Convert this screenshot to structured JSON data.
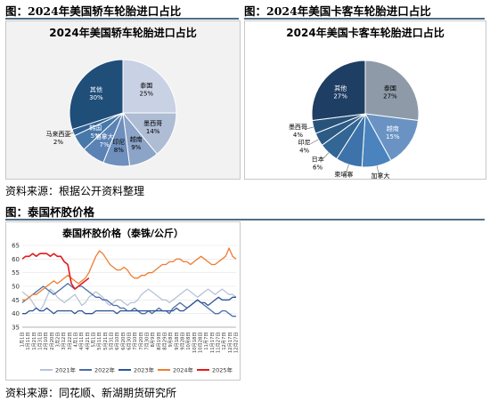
{
  "fig1": {
    "caption": "图：2024年美国轿车轮胎进口占比"
  },
  "fig2": {
    "caption": "图：2024年美国卡客车轮胎进口占比"
  },
  "source1": "资料来源：根据公开资料整理",
  "fig3": {
    "caption": "图：泰国杯胶价格"
  },
  "source2": "资料来源：同花顺、新湖期货研究所",
  "chart_data": [
    {
      "type": "pie",
      "title": "2024年美国轿车轮胎进口占比",
      "categories": [
        "泰国",
        "墨西哥",
        "越南",
        "印尼",
        "加拿大",
        "韩国",
        "马来西亚",
        "其他"
      ],
      "values": [
        25,
        14,
        9,
        8,
        7,
        5,
        2,
        30
      ],
      "value_labels": [
        "25%",
        "14%",
        "9%",
        "8%",
        "7%",
        "5%",
        "2%",
        "30%"
      ],
      "colors": [
        "#c9d2e4",
        "#aebcd4",
        "#8ba4c7",
        "#6f8fbd",
        "#5a82b4",
        "#4678aa",
        "#2f6195",
        "#1f4e79"
      ]
    },
    {
      "type": "pie",
      "title": "2024年美国卡客车轮胎进口占比",
      "categories": [
        "泰国",
        "越南",
        "加拿大",
        "柬埔寨",
        "日本",
        "印尼",
        "墨西哥",
        "其他"
      ],
      "values": [
        27,
        15,
        9,
        8,
        6,
        4,
        4,
        27
      ],
      "value_labels": [
        "27%",
        "15%",
        "9%",
        "8%",
        "6%",
        "4%",
        "4%",
        "27%"
      ],
      "colors": [
        "#8e9aa8",
        "#6a93c4",
        "#4a83bd",
        "#3d73aa",
        "#326694",
        "#2c5b86",
        "#27527a",
        "#1f3e63"
      ]
    },
    {
      "type": "line",
      "title": "泰国杯胶价格（泰铢/公斤）",
      "ylim": [
        35,
        65
      ],
      "yticks": [
        35,
        40,
        45,
        50,
        55,
        60,
        65
      ],
      "x_tick_labels": [
        "1月1日",
        "1月11日",
        "1月21日",
        "1月31日",
        "2月10日",
        "2月20日",
        "3月2日",
        "3月12日",
        "3月22日",
        "4月1日",
        "4月11日",
        "4月21日",
        "5月1日",
        "5月11日",
        "5月21日",
        "5月31日",
        "6月10日",
        "6月20日",
        "6月30日",
        "7月10日",
        "7月20日",
        "7月30日",
        "8月9日",
        "8月19日",
        "8月29日",
        "9月8日",
        "9月18日",
        "9月28日",
        "10月8日",
        "10月18日",
        "10月28日",
        "11月7日",
        "11月17日",
        "11月27日",
        "12月7日",
        "12月17日",
        "12月27日"
      ],
      "series": [
        {
          "name": "2021年",
          "color": "#b7c3d6",
          "values": [
            48,
            47,
            46,
            44,
            42,
            41,
            43,
            46,
            49,
            48,
            46,
            45,
            44,
            45,
            46,
            47,
            45,
            43,
            44,
            46,
            47,
            48,
            47,
            46,
            44,
            43,
            44,
            45,
            45,
            44,
            43,
            44,
            44,
            45,
            47,
            48,
            49,
            48,
            47,
            46,
            45,
            45,
            44,
            45,
            46,
            47,
            48,
            49,
            48,
            47,
            46,
            47,
            48,
            49,
            48,
            47,
            48,
            49,
            48,
            47,
            47,
            46
          ]
        },
        {
          "name": "2022年",
          "color": "#4a6ea8",
          "values": [
            44,
            45,
            46,
            47,
            48,
            49,
            50,
            49,
            48,
            47,
            48,
            49,
            50,
            51,
            50,
            49,
            50,
            50,
            49,
            48,
            47,
            46,
            46,
            45,
            45,
            44,
            43,
            43,
            42,
            42,
            41,
            41,
            42,
            41,
            40,
            40,
            41,
            40,
            41,
            42,
            41,
            41,
            40,
            42,
            43,
            44,
            43,
            42,
            43,
            44,
            45,
            44,
            43,
            42,
            41,
            40,
            40,
            41,
            41,
            40,
            39,
            39
          ]
        },
        {
          "name": "2023年",
          "color": "#2f5597",
          "values": [
            40,
            40,
            41,
            41,
            42,
            41,
            41,
            42,
            41,
            40,
            41,
            41,
            41,
            41,
            41,
            40,
            41,
            41,
            40,
            40,
            40,
            41,
            41,
            41,
            41,
            41,
            41,
            40,
            41,
            41,
            41,
            41,
            41,
            41,
            41,
            41,
            41,
            41,
            41,
            41,
            41,
            41,
            41,
            41,
            42,
            41,
            41,
            42,
            43,
            44,
            45,
            44,
            44,
            43,
            44,
            45,
            46,
            45,
            45,
            45,
            46,
            46
          ]
        },
        {
          "name": "2024年",
          "color": "#ed7d31",
          "values": [
            45,
            45,
            46,
            47,
            47,
            48,
            49,
            50,
            51,
            52,
            51,
            52,
            53,
            54,
            53,
            52,
            51,
            52,
            53,
            55,
            58,
            61,
            63,
            62,
            60,
            58,
            57,
            56,
            56,
            57,
            56,
            54,
            53,
            53,
            54,
            54,
            55,
            55,
            56,
            57,
            58,
            58,
            59,
            59,
            60,
            60,
            59,
            59,
            58,
            59,
            60,
            61,
            60,
            59,
            58,
            58,
            59,
            60,
            61,
            64,
            61,
            60
          ]
        },
        {
          "name": "2025年",
          "color": "#e41a1c",
          "values": [
            60,
            61,
            61,
            62,
            61,
            62,
            62,
            62,
            61,
            62,
            61,
            61,
            59,
            58,
            51,
            49,
            50,
            51,
            52,
            53
          ]
        }
      ]
    }
  ]
}
